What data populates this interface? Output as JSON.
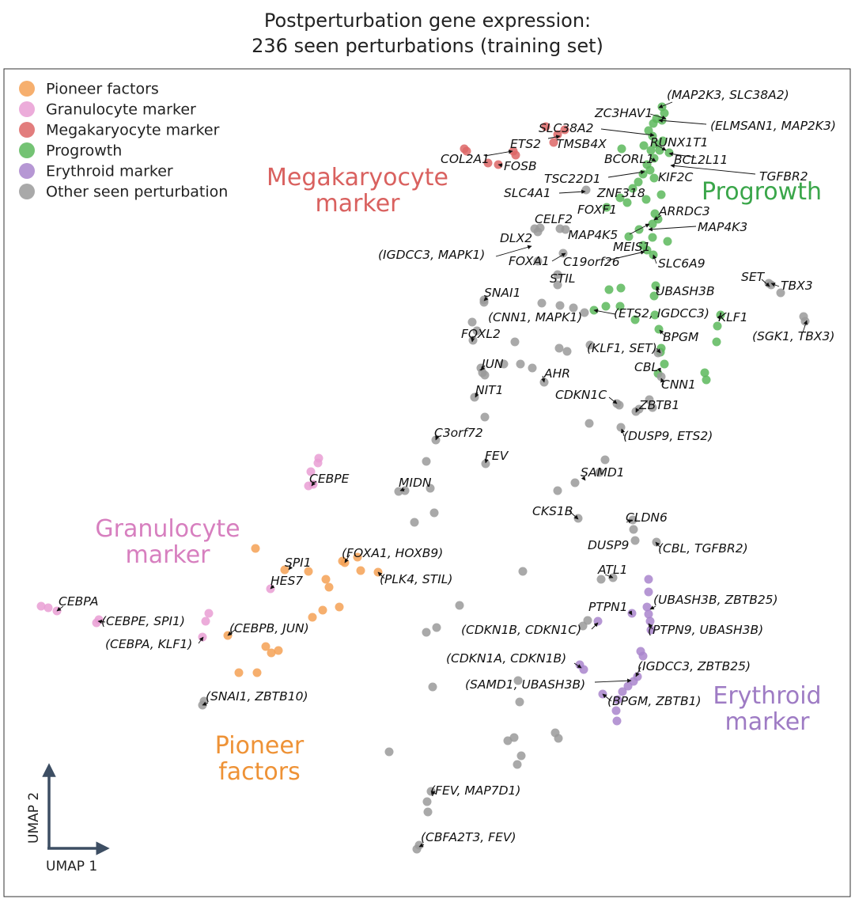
{
  "chart_data": {
    "type": "scatter",
    "title": "Postperturbation gene expression:",
    "subtitle": "236 seen perturbations (training set)",
    "xlabel": "UMAP 1",
    "ylabel": "UMAP 2",
    "grid": false,
    "legend_position": "top-left",
    "series": [
      {
        "name": "Pioneer factors",
        "color": "#f4a155",
        "points": [
          [
            323,
            693
          ],
          [
            433,
            709
          ],
          [
            452,
            704
          ],
          [
            390,
            722
          ],
          [
            456,
            721
          ],
          [
            412,
            732
          ],
          [
            416,
            742
          ],
          [
            408,
            771
          ],
          [
            429,
            767
          ],
          [
            395,
            780
          ],
          [
            336,
            817
          ],
          [
            352,
            822
          ],
          [
            343,
            825
          ],
          [
            302,
            850
          ],
          [
            325,
            850
          ],
          [
            288,
            803
          ],
          [
            478,
            723
          ],
          [
            360,
            720
          ],
          [
            436,
            711
          ]
        ]
      },
      {
        "name": "Granulocyte marker",
        "color": "#e99ed4",
        "points": [
          [
            403,
            579
          ],
          [
            402,
            585
          ],
          [
            393,
            596
          ],
          [
            390,
            614
          ],
          [
            396,
            612
          ],
          [
            52,
            766
          ],
          [
            61,
            768
          ],
          [
            72,
            772
          ],
          [
            125,
            783
          ],
          [
            122,
            787
          ],
          [
            264,
            775
          ],
          [
            260,
            785
          ],
          [
            256,
            805
          ],
          [
            342,
            744
          ]
        ]
      },
      {
        "name": "Megakaryocyte marker",
        "color": "#dd6666",
        "points": [
          [
            587,
            188
          ],
          [
            590,
            191
          ],
          [
            649,
            191
          ],
          [
            652,
            196
          ],
          [
            617,
            206
          ],
          [
            630,
            208
          ],
          [
            690,
            160
          ],
          [
            705,
            170
          ],
          [
            714,
            164
          ],
          [
            700,
            180
          ]
        ]
      },
      {
        "name": "Progrowth",
        "color": "#5cb85c",
        "points": [
          [
            837,
            135
          ],
          [
            840,
            143
          ],
          [
            830,
            150
          ],
          [
            826,
            156
          ],
          [
            837,
            152
          ],
          [
            820,
            165
          ],
          [
            825,
            172
          ],
          [
            838,
            178
          ],
          [
            829,
            182
          ],
          [
            814,
            184
          ],
          [
            823,
            190
          ],
          [
            834,
            190
          ],
          [
            846,
            193
          ],
          [
            786,
            188
          ],
          [
            827,
            200
          ],
          [
            818,
            208
          ],
          [
            822,
            215
          ],
          [
            813,
            220
          ],
          [
            807,
            230
          ],
          [
            827,
            225
          ],
          [
            800,
            238
          ],
          [
            784,
            250
          ],
          [
            836,
            246
          ],
          [
            817,
            252
          ],
          [
            793,
            256
          ],
          [
            767,
            262
          ],
          [
            828,
            270
          ],
          [
            832,
            277
          ],
          [
            825,
            283
          ],
          [
            808,
            290
          ],
          [
            795,
            299
          ],
          [
            825,
            300
          ],
          [
            844,
            305
          ],
          [
            813,
            310
          ],
          [
            818,
            316
          ],
          [
            826,
            322
          ],
          [
            770,
            366
          ],
          [
            785,
            364
          ],
          [
            829,
            361
          ],
          [
            827,
            374
          ],
          [
            751,
            392
          ],
          [
            766,
            387
          ],
          [
            784,
            387
          ],
          [
            803,
            404
          ],
          [
            828,
            398
          ],
          [
            911,
            398
          ],
          [
            907,
            412
          ],
          [
            833,
            416
          ],
          [
            906,
            432
          ],
          [
            836,
            440
          ],
          [
            891,
            471
          ],
          [
            893,
            480
          ],
          [
            835,
            445
          ],
          [
            840,
            460
          ],
          [
            832,
            472
          ]
        ]
      },
      {
        "name": "Erythroid marker",
        "color": "#a985cc",
        "points": [
          [
            820,
            732
          ],
          [
            820,
            748
          ],
          [
            818,
            767
          ],
          [
            820,
            776
          ],
          [
            822,
            785
          ],
          [
            823,
            796
          ],
          [
            799,
            775
          ],
          [
            756,
            785
          ],
          [
            810,
            823
          ],
          [
            813,
            829
          ],
          [
            733,
            840
          ],
          [
            738,
            846
          ],
          [
            806,
            855
          ],
          [
            801,
            861
          ],
          [
            794,
            867
          ],
          [
            787,
            874
          ],
          [
            781,
            884
          ],
          [
            779,
            898
          ],
          [
            780,
            911
          ],
          [
            762,
            877
          ]
        ]
      },
      {
        "name": "Other seen perturbation",
        "color": "#9a9a9a",
        "points": [
          [
            676,
            289
          ],
          [
            680,
            293
          ],
          [
            683,
            288
          ],
          [
            708,
            289
          ],
          [
            715,
            290
          ],
          [
            712,
            320
          ],
          [
            741,
            240
          ],
          [
            705,
            360
          ],
          [
            680,
            330
          ],
          [
            705,
            347
          ],
          [
            612,
            379
          ],
          [
            612,
            382
          ],
          [
            685,
            383
          ],
          [
            708,
            386
          ],
          [
            725,
            389
          ],
          [
            739,
            395
          ],
          [
            597,
            407
          ],
          [
            603,
            418
          ],
          [
            598,
            430
          ],
          [
            651,
            432
          ],
          [
            707,
            440
          ],
          [
            717,
            444
          ],
          [
            746,
            436
          ],
          [
            832,
            446
          ],
          [
            836,
            476
          ],
          [
            975,
            360
          ],
          [
            972,
            358
          ],
          [
            987,
            370
          ],
          [
            1016,
            400
          ],
          [
            1018,
            406
          ],
          [
            608,
            465
          ],
          [
            610,
            471
          ],
          [
            613,
            474
          ],
          [
            637,
            460
          ],
          [
            658,
            460
          ],
          [
            673,
            465
          ],
          [
            688,
            483
          ],
          [
            600,
            502
          ],
          [
            613,
            527
          ],
          [
            780,
            510
          ],
          [
            783,
            512
          ],
          [
            804,
            520
          ],
          [
            808,
            517
          ],
          [
            821,
            505
          ],
          [
            825,
            515
          ],
          [
            745,
            535
          ],
          [
            785,
            540
          ],
          [
            551,
            556
          ],
          [
            614,
            586
          ],
          [
            539,
            583
          ],
          [
            765,
            581
          ],
          [
            758,
            597
          ],
          [
            504,
            621
          ],
          [
            512,
            620
          ],
          [
            544,
            617
          ],
          [
            549,
            648
          ],
          [
            705,
            620
          ],
          [
            727,
            610
          ],
          [
            731,
            655
          ],
          [
            524,
            660
          ],
          [
            800,
            657
          ],
          [
            801,
            669
          ],
          [
            803,
            683
          ],
          [
            830,
            685
          ],
          [
            661,
            722
          ],
          [
            775,
            730
          ],
          [
            760,
            732
          ],
          [
            581,
            765
          ],
          [
            552,
            793
          ],
          [
            539,
            799
          ],
          [
            743,
            784
          ],
          [
            737,
            791
          ],
          [
            547,
            868
          ],
          [
            655,
            860
          ],
          [
            657,
            887
          ],
          [
            492,
            950
          ],
          [
            650,
            932
          ],
          [
            642,
            936
          ],
          [
            702,
            926
          ],
          [
            706,
            933
          ],
          [
            659,
            955
          ],
          [
            654,
            966
          ],
          [
            545,
            1000
          ],
          [
            540,
            1013
          ],
          [
            541,
            1026
          ],
          [
            527,
            1073
          ],
          [
            530,
            1068
          ],
          [
            256,
            891
          ],
          [
            258,
            886
          ]
        ]
      }
    ],
    "point_labels": [
      "(MAP2K3, SLC38A2)",
      "ZC3HAV1",
      "(ELMSAN1, MAP2K3)",
      "SLC38A2",
      "RUNX1T1",
      "ETS2",
      "TMSB4X",
      "COL2A1",
      "FOSB",
      "BCORL1",
      "BCL2L11",
      "TSC22D1",
      "KIF2C",
      "TGFBR2",
      "SLC4A1",
      "ZNF318",
      "FOXF1",
      "ARRDC3",
      "CELF2",
      "MAP4K3",
      "DLX2",
      "MAP4K5",
      "MEIS1",
      "(IGDCC3, MAPK1)",
      "FOXA1",
      "C19orf26",
      "SLC6A9",
      "STIL",
      "SET",
      "TBX3",
      "UBASH3B",
      "SNAI1",
      "(CNN1, MAPK1)",
      "(ETS2, IGDCC3)",
      "KLF1",
      "(SGK1, TBX3)",
      "FOXL2",
      "BPGM",
      "(KLF1, SET)",
      "JUN",
      "CBL",
      "AHR",
      "CNN1",
      "NIT1",
      "CDKN1C",
      "ZBTB1",
      "(DUSP9, ETS2)",
      "C3orf72",
      "FEV",
      "CEBPE",
      "SAMD1",
      "MIDN",
      "CKS1B",
      "CLDN6",
      "DUSP9",
      "(CBL, TGFBR2)",
      "(FOXA1, HOXB9)",
      "SPI1",
      "(PLK4, STIL)",
      "HES7",
      "ATL1",
      "(UBASH3B, ZBTB25)",
      "CEBPA",
      "PTPN1",
      "(CEBPE, SPI1)",
      "(CEBPB, JUN)",
      "(CDKN1B, CDKN1C)",
      "(PTPN9, UBASH3B)",
      "(CEBPA, KLF1)",
      "(CDKN1A, CDKN1B)",
      "(IGDCC3, ZBTB25)",
      "(SAMD1, UBASH3B)",
      "(BPGM, ZBTB1)",
      "(SNAI1, ZBTB10)",
      "(FEV, MAP7D1)",
      "(CBFA2T3, FEV)"
    ],
    "group_annotations": [
      {
        "text": "Megakaryocyte marker",
        "lines": [
          "Megakaryocyte",
          "marker"
        ],
        "color": "#d9615f"
      },
      {
        "text": "Progrowth",
        "lines": [
          "Progrowth"
        ],
        "color": "#3aa64a"
      },
      {
        "text": "Granulocyte marker",
        "lines": [
          "Granulocyte",
          "marker"
        ],
        "color": "#d77fbf"
      },
      {
        "text": "Pioneer factors",
        "lines": [
          "Pioneer",
          "factors"
        ],
        "color": "#ee9236"
      },
      {
        "text": "Erythroid marker",
        "lines": [
          "Erythroid",
          "marker"
        ],
        "color": "#9e7bc4"
      }
    ]
  }
}
